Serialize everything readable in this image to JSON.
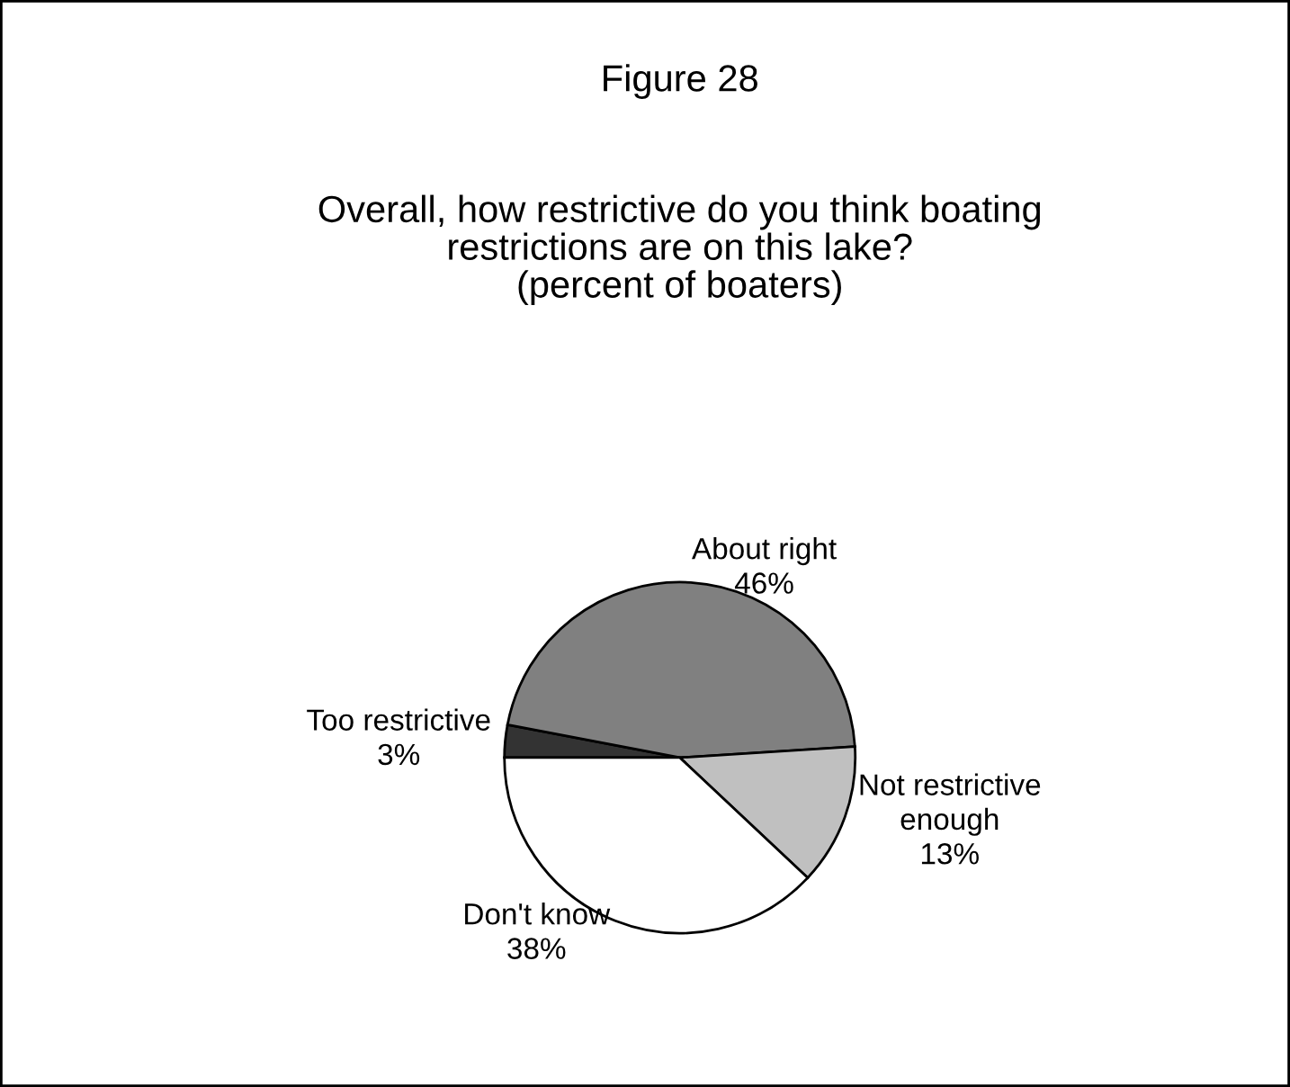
{
  "chart_data": {
    "type": "pie",
    "title": "Figure 28",
    "subtitle": "Overall, how restrictive do you think boating\nrestrictions are on this lake?\n(percent of boaters)",
    "categories": [
      "Too restrictive",
      "About right",
      "Not restrictive\nenough",
      "Don't know"
    ],
    "values": [
      3,
      46,
      13,
      38
    ],
    "value_labels": [
      "3%",
      "46%",
      "13%",
      "38%"
    ],
    "colors": [
      "#333333",
      "#808080",
      "#c0c0c0",
      "#ffffff"
    ],
    "legend": false
  }
}
